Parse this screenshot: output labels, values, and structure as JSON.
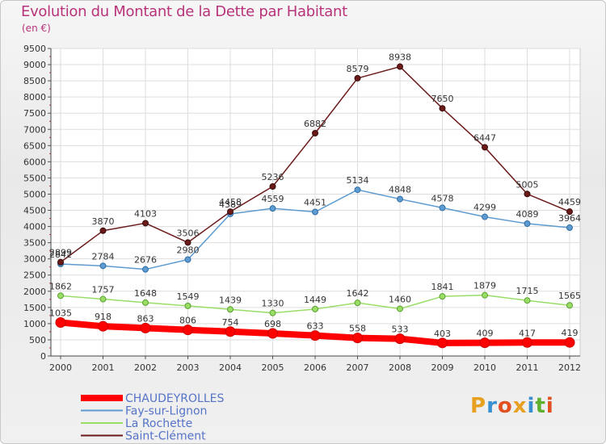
{
  "title": "Evolution du Montant de la Dette par Habitant",
  "subtitle": "(en €)",
  "logo": "Proxiti",
  "chart_data": {
    "type": "line",
    "x": [
      "2000",
      "2001",
      "2002",
      "2003",
      "2004",
      "2005",
      "2006",
      "2007",
      "2008",
      "2009",
      "2010",
      "2011",
      "2012"
    ],
    "ylim": [
      0,
      9500
    ],
    "yticks": [
      0,
      500,
      1000,
      1500,
      2000,
      2500,
      3000,
      3500,
      4000,
      4500,
      5000,
      5500,
      6000,
      6500,
      7000,
      7500,
      8000,
      8500,
      9000,
      9500
    ],
    "grid": true,
    "legend_position": "bottom-left",
    "series": [
      {
        "name": "CHAUDEYROLLES",
        "color": "#ff0000",
        "values": [
          1035,
          918,
          863,
          806,
          754,
          698,
          633,
          558,
          533,
          403,
          409,
          417,
          419
        ]
      },
      {
        "name": "Fay-sur-Lignon",
        "color": "#5d9bd0",
        "values": [
          2842,
          2784,
          2676,
          2980,
          4389,
          4559,
          4451,
          5134,
          4848,
          4578,
          4299,
          4089,
          3964
        ]
      },
      {
        "name": "La Rochette",
        "color": "#99dd66",
        "values": [
          1862,
          1757,
          1648,
          1549,
          1439,
          1330,
          1449,
          1642,
          1460,
          1841,
          1879,
          1715,
          1565
        ]
      },
      {
        "name": "Saint-Clément",
        "color": "#6b1a1a",
        "values": [
          2899,
          3870,
          4103,
          3506,
          4458,
          5236,
          6882,
          8579,
          8938,
          7650,
          6447,
          5005,
          4459
        ]
      }
    ]
  }
}
